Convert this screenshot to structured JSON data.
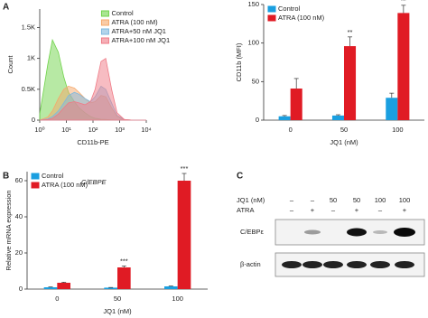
{
  "chart_data": [
    {
      "type": "area",
      "panel_label": "A",
      "xlabel": "CD11b-PE",
      "ylabel": "Count",
      "log_x": true,
      "legend": "upper right",
      "x": [
        1,
        2,
        3,
        5,
        8,
        12,
        20,
        30,
        50,
        80,
        120,
        200,
        300,
        500,
        800,
        1500,
        3000,
        10000
      ],
      "xlim": [
        1,
        10000
      ],
      "xticks": [
        {
          "value": 1,
          "label": "10⁰"
        },
        {
          "value": 10,
          "label": "10¹"
        },
        {
          "value": 100,
          "label": "10²"
        },
        {
          "value": 1000,
          "label": "10³"
        },
        {
          "value": 10000,
          "label": "10⁴"
        }
      ],
      "ylim": [
        0,
        1800
      ],
      "yticks": [
        0,
        {
          "value": 500,
          "label": "0.5K"
        },
        {
          "value": 1000,
          "label": "1K"
        },
        {
          "value": 1500,
          "label": "1.5K"
        }
      ],
      "series": [
        {
          "name": "Control",
          "color": "#6fd34a",
          "values": [
            100,
            900,
            1300,
            1100,
            700,
            450,
            300,
            200,
            120,
            60,
            30,
            15,
            10,
            5,
            0,
            0,
            0,
            0
          ]
        },
        {
          "name": "ATRA (100 nM)",
          "color": "#f5a86a",
          "values": [
            0,
            50,
            150,
            350,
            500,
            550,
            520,
            450,
            350,
            280,
            300,
            400,
            380,
            200,
            60,
            10,
            0,
            0
          ]
        },
        {
          "name": "ATRA+50 nM JQ1",
          "color": "#7fb8de",
          "values": [
            0,
            20,
            60,
            150,
            280,
            400,
            450,
            420,
            350,
            300,
            380,
            550,
            500,
            280,
            80,
            10,
            0,
            0
          ]
        },
        {
          "name": "ATRA+100 nM JQ1",
          "color": "#ef7a86",
          "values": [
            0,
            10,
            30,
            100,
            200,
            280,
            300,
            280,
            250,
            300,
            500,
            950,
            1000,
            500,
            120,
            10,
            0,
            0
          ]
        }
      ]
    },
    {
      "type": "bar",
      "xlabel": "JQ1 (nM)",
      "ylabel": "CD11b (MFI)",
      "legend": "upper left",
      "categories": [
        "0",
        "50",
        "100"
      ],
      "ylim": [
        0,
        150
      ],
      "yticks": [
        0,
        50,
        100,
        150
      ],
      "series": [
        {
          "name": "Control",
          "color": "#1a9fe0",
          "values": [
            5,
            6,
            29
          ],
          "errors": [
            1,
            1,
            6
          ]
        },
        {
          "name": "ATRA (100 nM)",
          "color": "#e01b24",
          "values": [
            41,
            96,
            139
          ],
          "errors": [
            13,
            12,
            10
          ],
          "significance": [
            null,
            "**",
            "**"
          ]
        }
      ]
    },
    {
      "type": "bar",
      "panel_label": "B",
      "title": "C/EBPE",
      "xlabel": "JQ1 (nM)",
      "ylabel": "Relative mRNA expression",
      "legend": "upper left",
      "categories": [
        "0",
        "50",
        "100"
      ],
      "ylim": [
        0,
        65
      ],
      "yticks": [
        0,
        20,
        40,
        60
      ],
      "series": [
        {
          "name": "Control",
          "color": "#1a9fe0",
          "values": [
            1,
            0.8,
            1.5
          ],
          "errors": [
            0.2,
            0.1,
            0.2
          ]
        },
        {
          "name": "ATRA (100 nM)",
          "color": "#e01b24",
          "values": [
            3.5,
            12,
            60
          ],
          "errors": [
            0.3,
            0.8,
            4
          ],
          "significance": [
            null,
            "***",
            "***"
          ]
        }
      ]
    }
  ],
  "blot": {
    "panel_label": "C",
    "header_labels": [
      "JQ1 (nM)",
      "ATRA"
    ],
    "lanes": [
      {
        "jq1": "–",
        "atra": "–"
      },
      {
        "jq1": "–",
        "atra": "+"
      },
      {
        "jq1": "50",
        "atra": "–"
      },
      {
        "jq1": "50",
        "atra": "+"
      },
      {
        "jq1": "100",
        "atra": "–"
      },
      {
        "jq1": "100",
        "atra": "+"
      }
    ],
    "rows": [
      "C/EBPε",
      "β-actin"
    ]
  }
}
